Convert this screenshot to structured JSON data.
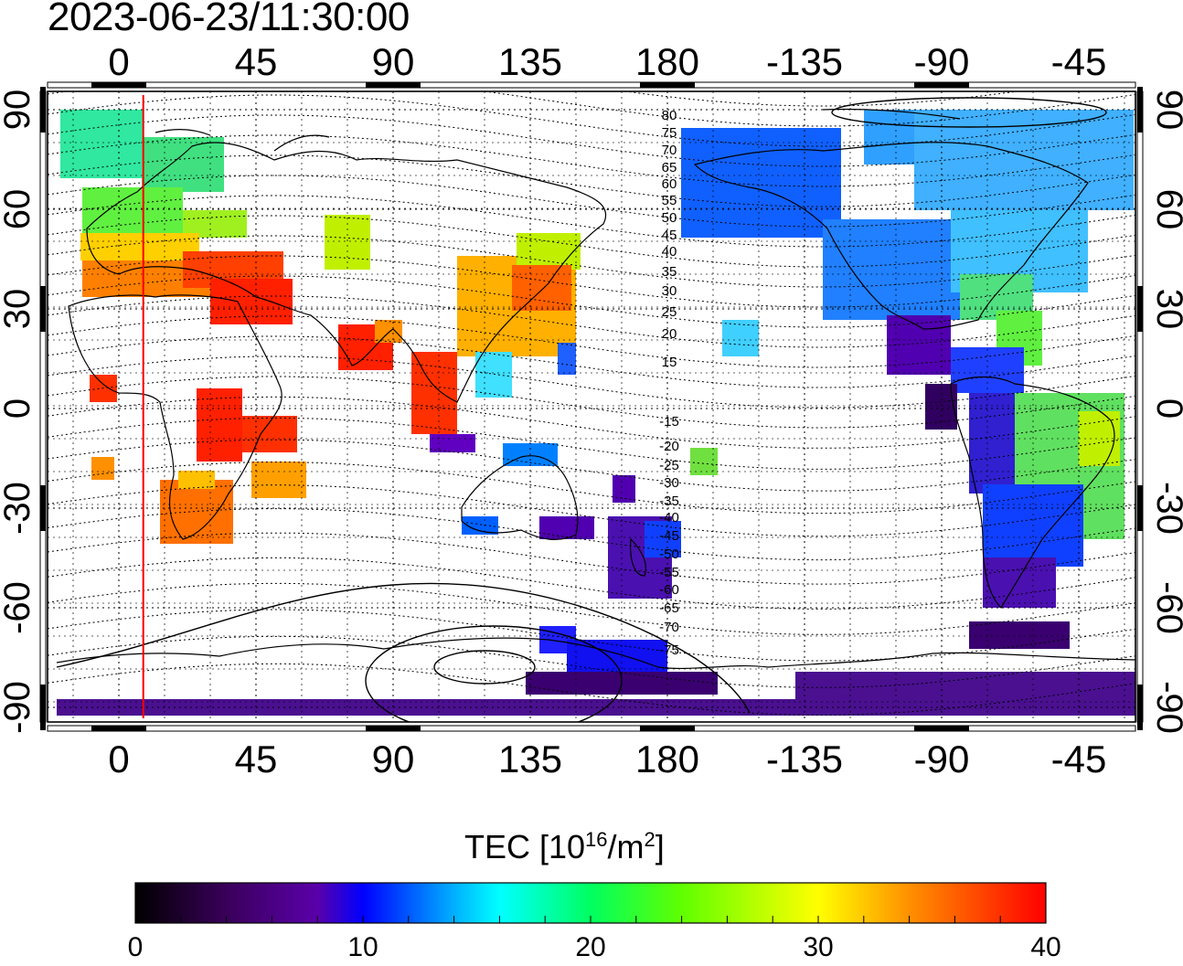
{
  "title": "2023-06-23/11:30:00",
  "map": {
    "top_ticks": [
      "0",
      "45",
      "90",
      "135",
      "180",
      "-135",
      "-90",
      "-45"
    ],
    "bottom_ticks": [
      "0",
      "45",
      "90",
      "135",
      "180",
      "-135",
      "-90",
      "-45"
    ],
    "left_ticks": [
      "90",
      "60",
      "30",
      "0",
      "-30",
      "-60",
      "-90"
    ],
    "right_ticks": [
      "90",
      "60",
      "30",
      "0",
      "-30",
      "-60",
      "-90"
    ],
    "contour_labels": [
      "80",
      "75",
      "70",
      "65",
      "60",
      "55",
      "50",
      "45",
      "40",
      "35",
      "30",
      "25",
      "20",
      "15",
      "-15",
      "-20",
      "-25",
      "-30",
      "-35",
      "-40",
      "-45",
      "-50",
      "-55",
      "-60",
      "-65",
      "-70",
      "-75"
    ],
    "terminator_longitude": 8,
    "grid": true
  },
  "colorbar": {
    "title_prefix": "TEC  [10",
    "title_exp1": "16",
    "title_mid": "/m",
    "title_exp2": "2",
    "title_suffix": "]",
    "labels": [
      "0",
      "10",
      "20",
      "30",
      "40"
    ],
    "min": 0,
    "max": 40
  },
  "colors": {
    "terminator": "#ff0000",
    "colormap": [
      "#000000",
      "#3a005a",
      "#5a00aa",
      "#0000ff",
      "#00b0ff",
      "#00ffff",
      "#00ff60",
      "#60ff00",
      "#ffff00",
      "#ff9000",
      "#ff0000"
    ]
  }
}
